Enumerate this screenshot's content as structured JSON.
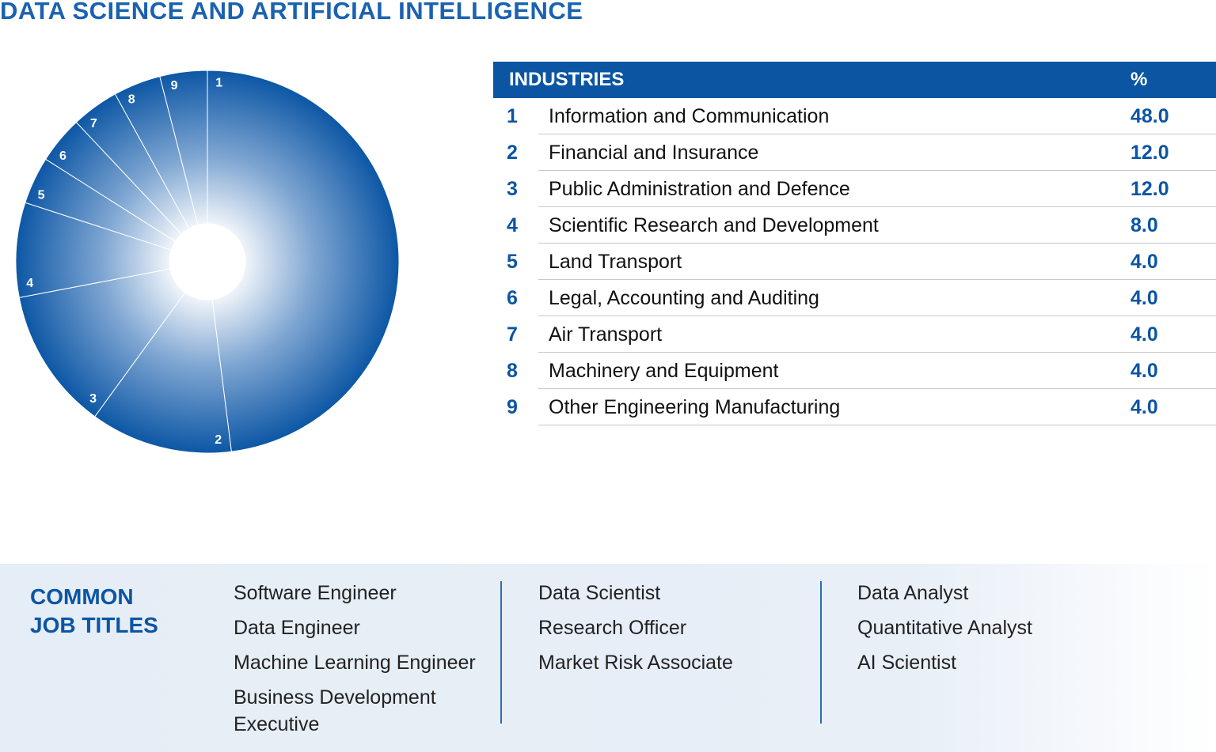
{
  "chart_data": {
    "type": "pie",
    "title": "DATA SCIENCE AND ARTIFICIAL INTELLIGENCE",
    "table_headers": [
      "INDUSTRIES",
      "%"
    ],
    "slice_labels": [
      "1",
      "2",
      "3",
      "4",
      "5",
      "6",
      "7",
      "8",
      "9"
    ],
    "categories": [
      "Information and Communication",
      "Financial and Insurance",
      "Public Administration and Defence",
      "Scientific Research and Development",
      "Land Transport",
      "Legal, Accounting and Auditing",
      "Air Transport",
      "Machinery and Equipment",
      "Other Engineering Manufacturing"
    ],
    "values": [
      48,
      12,
      12,
      8,
      4,
      4,
      4,
      4,
      4
    ],
    "value_labels": [
      "48.0",
      "12.0",
      "12.0",
      "8.0",
      "4.0",
      "4.0",
      "4.0",
      "4.0",
      "4.0"
    ],
    "color": "#0d57a5"
  },
  "job_titles": {
    "heading": [
      "COMMON",
      "JOB TITLES"
    ],
    "columns": [
      [
        "Software Engineer",
        "Data Engineer",
        "Machine Learning Engineer",
        "Business Development Executive"
      ],
      [
        "Data Scientist",
        "Research Officer",
        "Market Risk Associate"
      ],
      [
        "Data Analyst",
        "Quantitative Analyst",
        "AI Scientist"
      ]
    ]
  }
}
